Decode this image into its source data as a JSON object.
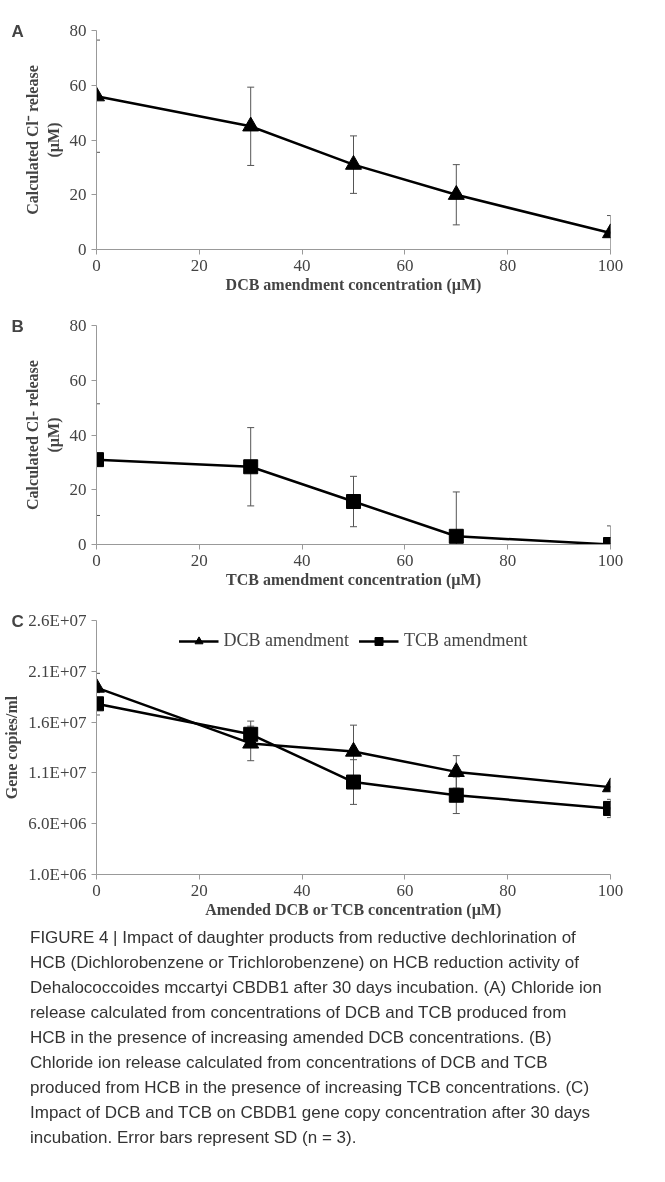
{
  "chart_data": [
    {
      "type": "line",
      "xlabel": "DCB amendment concentration (µM)",
      "ylabel": "Calculated Cl⁻ release\n(µM)",
      "annotations": [
        "A"
      ],
      "x": [
        0,
        30,
        50,
        70,
        100
      ],
      "series": [
        {
          "color": "#000000",
          "values": [
            56,
            45,
            31,
            20,
            6
          ],
          "errors": [
            20.5,
            14.3,
            10.5,
            11,
            [
              0,
              12.4
            ]
          ]
        }
      ],
      "xlim": [
        0,
        100
      ],
      "xticks": [
        0,
        20,
        40,
        60,
        80,
        100
      ],
      "ylim": [
        0,
        80
      ],
      "yticks": [
        0,
        20,
        40,
        60,
        80
      ],
      "grid": false,
      "legend": false,
      "marker": "triangle",
      "line_style": "solid"
    },
    {
      "type": "line",
      "xlabel": "TCB amendment concentration (µM)",
      "ylabel": "Calculated Cl- release\n(µM)",
      "annotations": [
        "B"
      ],
      "x": [
        0,
        30,
        50,
        70,
        100
      ],
      "series": [
        {
          "color": "#000000",
          "values": [
            31,
            28.4,
            15.7,
            3,
            0
          ],
          "errors": [
            20.4,
            14.3,
            9.2,
            [
              0,
              19.2
            ],
            [
              0,
              6.8
            ]
          ]
        }
      ],
      "xlim": [
        0,
        100
      ],
      "xticks": [
        0,
        20,
        40,
        60,
        80,
        100
      ],
      "ylim": [
        0,
        80
      ],
      "yticks": [
        0,
        20,
        40,
        60,
        80
      ],
      "grid": false,
      "legend": false,
      "marker": "square",
      "line_style": "solid"
    },
    {
      "type": "line",
      "xlabel": "Amended DCB or TCB concentration (µM)",
      "ylabel": "Gene copies/ml",
      "annotations": [
        "C",
        "FIGURE 4 | Impact of daughter products from reductive dechlorination of HCB (Dichlorobenzene or Trichlorobenzene) on HCB reduction activity of Dehalococcoides mccartyi CBDB1 after 30 days incubation. (A) Chloride ion release calculated from concentrations of DCB and TCB produced from HCB in the presence of increasing amended DCB concentrations. (B) Chloride ion release calculated from concentrations of DCB and TCB produced from HCB in the presence of increasing TCB concentrations. (C) Impact of DCB and TCB on CBDB1 gene copy concentration after 30 days incubation. Error bars represent SD (n = 3)."
      ],
      "x": [
        0,
        30,
        50,
        70,
        100
      ],
      "series": [
        {
          "name": "DCB amendment",
          "color": "#000000",
          "marker": "triangle",
          "values": [
            19400000,
            13900000,
            13100000,
            11100000,
            9600000
          ],
          "errors": [
            1400000,
            1700000,
            2600000,
            1600000,
            null
          ]
        },
        {
          "name": "TCB amendment",
          "color": "#000000",
          "marker": "square",
          "values": [
            17800000,
            14800000,
            10100000,
            8800000,
            7500000
          ],
          "errors": [
            1100000,
            1300000,
            2200000,
            1800000,
            900000
          ]
        }
      ],
      "xlim": [
        0,
        100
      ],
      "xticks": [
        0,
        20,
        40,
        60,
        80,
        100
      ],
      "ylim": [
        1000000,
        26000000
      ],
      "yticks": [
        {
          "value": 1000000,
          "label": "1.0E+06"
        },
        {
          "value": 6000000,
          "label": "6.0E+06"
        },
        {
          "value": 11000000,
          "label": "1.1E+07"
        },
        {
          "value": 16000000,
          "label": "1.6E+07"
        },
        {
          "value": 21000000,
          "label": "2.1E+07"
        },
        {
          "value": 26000000,
          "label": "2.6E+07"
        }
      ],
      "grid": false,
      "legend": "top",
      "line_style": "solid"
    }
  ]
}
